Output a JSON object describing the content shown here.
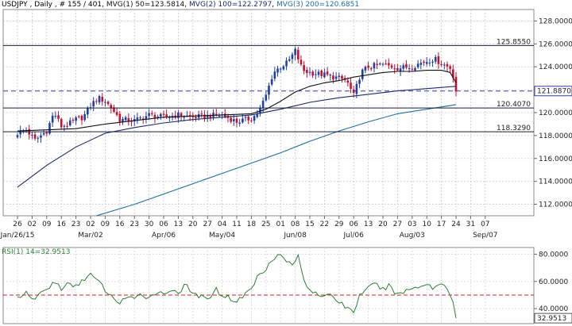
{
  "header": {
    "symbol": "USDJPY",
    "timeframe": "Daily",
    "bar_index": "# 155 / 401",
    "mvg1": "MVG(1) 50=123.5814",
    "mvg2": "MVG(2) 100=122.2797",
    "mvg3": "MVG(3) 200=120.6851"
  },
  "rsi_header": "RSI(1) 14=32.9513",
  "colors": {
    "bull": "#1f3fa8",
    "bear": "#c8102e",
    "ma50": "#111111",
    "ma100": "#1a2a6c",
    "ma200": "#1b6fa0",
    "rsi": "#2e7d32",
    "rsi_level": "#cc2222",
    "hline": "#1a1a3a",
    "current_hline": "#3a3aa0"
  },
  "chart_data": [
    {
      "type": "candlestick",
      "title": "",
      "ylim": [
        111,
        129
      ],
      "yticks": [
        "112.0000",
        "114.0000",
        "116.0000",
        "118.0000",
        "120.0000",
        "122.0000",
        "124.0000",
        "126.0000",
        "128.0000"
      ],
      "xticks": [
        "26",
        "02",
        "09",
        "16",
        "23",
        "02",
        "09",
        "16",
        "23",
        "30",
        "06",
        "13",
        "20",
        "27",
        "04",
        "11",
        "18",
        "25",
        "01",
        "08",
        "15",
        "22",
        "29",
        "06",
        "13",
        "20",
        "27",
        "03",
        "10",
        "17",
        "24",
        "31",
        "07"
      ],
      "month_labels": [
        {
          "label": "Jan/26/15",
          "index": 0
        },
        {
          "label": "Mar/02",
          "index": 5
        },
        {
          "label": "Apr/06",
          "index": 10
        },
        {
          "label": "May/04",
          "index": 14
        },
        {
          "label": "Jun/08",
          "index": 19
        },
        {
          "label": "Jul/06",
          "index": 23
        },
        {
          "label": "Aug/03",
          "index": 27
        },
        {
          "label": "Sep/07",
          "index": 32
        }
      ],
      "horizontal_levels": [
        {
          "label": "125.8550",
          "value": 125.855,
          "style": "solid"
        },
        {
          "label": "121.8870",
          "value": 121.887,
          "style": "dashed",
          "current": true
        },
        {
          "label": "120.4070",
          "value": 120.407,
          "style": "solid"
        },
        {
          "label": "118.3290",
          "value": 118.329,
          "style": "solid"
        }
      ],
      "close_path": [
        [
          0,
          118.2
        ],
        [
          0.6,
          118.5
        ],
        [
          1.2,
          117.6
        ],
        [
          2,
          118.4
        ],
        [
          2.5,
          120.0
        ],
        [
          3,
          118.8
        ],
        [
          3.5,
          119.0
        ],
        [
          4,
          119.4
        ],
        [
          4.5,
          119.6
        ],
        [
          5,
          120.6
        ],
        [
          5.5,
          121.3
        ],
        [
          6,
          121.0
        ],
        [
          6.5,
          120.3
        ],
        [
          7,
          119.4
        ],
        [
          8,
          119.3
        ],
        [
          9,
          119.8
        ],
        [
          10,
          119.6
        ],
        [
          11,
          119.8
        ],
        [
          12,
          119.6
        ],
        [
          13,
          119.7
        ],
        [
          14,
          119.8
        ],
        [
          15,
          119.2
        ],
        [
          16,
          119.5
        ],
        [
          16.5,
          120.0
        ],
        [
          17,
          121.5
        ],
        [
          17.5,
          123.5
        ],
        [
          18,
          124.0
        ],
        [
          18.5,
          124.4
        ],
        [
          19,
          125.4
        ],
        [
          19.5,
          123.7
        ],
        [
          20,
          123.5
        ],
        [
          21,
          123.3
        ],
        [
          22,
          123.0
        ],
        [
          22.5,
          122.8
        ],
        [
          23,
          121.5
        ],
        [
          23.5,
          123.5
        ],
        [
          24,
          124.0
        ],
        [
          25,
          124.2
        ],
        [
          26,
          123.9
        ],
        [
          27,
          124.0
        ],
        [
          27.5,
          124.3
        ],
        [
          28,
          124.5
        ],
        [
          28.5,
          124.7
        ],
        [
          29,
          124.3
        ],
        [
          29.6,
          123.9
        ],
        [
          29.85,
          123.1
        ],
        [
          30,
          121.9
        ]
      ],
      "ma50_path": [
        [
          0,
          118.4
        ],
        [
          2,
          118.5
        ],
        [
          4,
          118.6
        ],
        [
          6,
          119.0
        ],
        [
          8,
          119.3
        ],
        [
          10,
          119.6
        ],
        [
          12,
          119.7
        ],
        [
          14,
          119.8
        ],
        [
          16,
          119.9
        ],
        [
          17,
          120.3
        ],
        [
          18,
          121.0
        ],
        [
          19,
          121.8
        ],
        [
          20,
          122.3
        ],
        [
          21,
          122.6
        ],
        [
          22,
          122.8
        ],
        [
          23,
          123.1
        ],
        [
          24,
          123.3
        ],
        [
          25,
          123.5
        ],
        [
          26,
          123.6
        ],
        [
          27,
          123.6
        ],
        [
          28,
          123.7
        ],
        [
          29,
          123.7
        ],
        [
          29.6,
          123.5
        ],
        [
          30,
          122.6
        ]
      ],
      "ma100_path": [
        [
          0,
          113.5
        ],
        [
          2,
          115.4
        ],
        [
          4,
          117.0
        ],
        [
          6,
          118.2
        ],
        [
          8,
          118.7
        ],
        [
          10,
          119.1
        ],
        [
          12,
          119.4
        ],
        [
          14,
          119.6
        ],
        [
          16,
          119.8
        ],
        [
          18,
          120.3
        ],
        [
          20,
          120.9
        ],
        [
          22,
          121.3
        ],
        [
          24,
          121.6
        ],
        [
          26,
          121.9
        ],
        [
          28,
          122.1
        ],
        [
          30,
          122.3
        ]
      ],
      "ma200_path": [
        [
          5.4,
          111.0
        ],
        [
          8,
          112.0
        ],
        [
          10,
          112.9
        ],
        [
          12,
          113.8
        ],
        [
          14,
          114.7
        ],
        [
          16,
          115.6
        ],
        [
          18,
          116.5
        ],
        [
          20,
          117.5
        ],
        [
          22,
          118.4
        ],
        [
          24,
          119.2
        ],
        [
          26,
          119.9
        ],
        [
          28,
          120.3
        ],
        [
          30,
          120.7
        ]
      ]
    },
    {
      "type": "line",
      "title": "",
      "ylim": [
        29,
        85
      ],
      "yticks": [
        "40.0000",
        "60.0000",
        "80.0000"
      ],
      "level": 50,
      "current_label": "32.9513",
      "path": [
        [
          0,
          48
        ],
        [
          0.5,
          52
        ],
        [
          1,
          46
        ],
        [
          1.5,
          51
        ],
        [
          2,
          54
        ],
        [
          2.5,
          60
        ],
        [
          3,
          55
        ],
        [
          3.5,
          58
        ],
        [
          4,
          56
        ],
        [
          4.5,
          62
        ],
        [
          5,
          65
        ],
        [
          5.5,
          60
        ],
        [
          6,
          54
        ],
        [
          6.5,
          47
        ],
        [
          7,
          45
        ],
        [
          7.5,
          49
        ],
        [
          8,
          46
        ],
        [
          8.5,
          51
        ],
        [
          9,
          48
        ],
        [
          9.5,
          53
        ],
        [
          10,
          50
        ],
        [
          10.5,
          55
        ],
        [
          11,
          52
        ],
        [
          11.5,
          57
        ],
        [
          12,
          51
        ],
        [
          12.5,
          49
        ],
        [
          13,
          46
        ],
        [
          13.5,
          55
        ],
        [
          14,
          50
        ],
        [
          14.5,
          48
        ],
        [
          15,
          45
        ],
        [
          15.5,
          50
        ],
        [
          16,
          55
        ],
        [
          16.5,
          65
        ],
        [
          17,
          70
        ],
        [
          17.5,
          78
        ],
        [
          18,
          79
        ],
        [
          18.5,
          74
        ],
        [
          19,
          73
        ],
        [
          19.2,
          80
        ],
        [
          19.5,
          63
        ],
        [
          20,
          54
        ],
        [
          20.5,
          52
        ],
        [
          21,
          48
        ],
        [
          21.5,
          50
        ],
        [
          22,
          45
        ],
        [
          22.5,
          41
        ],
        [
          23,
          38
        ],
        [
          23.5,
          52
        ],
        [
          24,
          55
        ],
        [
          24.5,
          58
        ],
        [
          25,
          54
        ],
        [
          25.5,
          57
        ],
        [
          26,
          50
        ],
        [
          26.5,
          53
        ],
        [
          27,
          55
        ],
        [
          27.5,
          57
        ],
        [
          28,
          58
        ],
        [
          28.5,
          55
        ],
        [
          29,
          59
        ],
        [
          29.4,
          55
        ],
        [
          29.7,
          50
        ],
        [
          29.9,
          41
        ],
        [
          30,
          33
        ]
      ]
    }
  ]
}
